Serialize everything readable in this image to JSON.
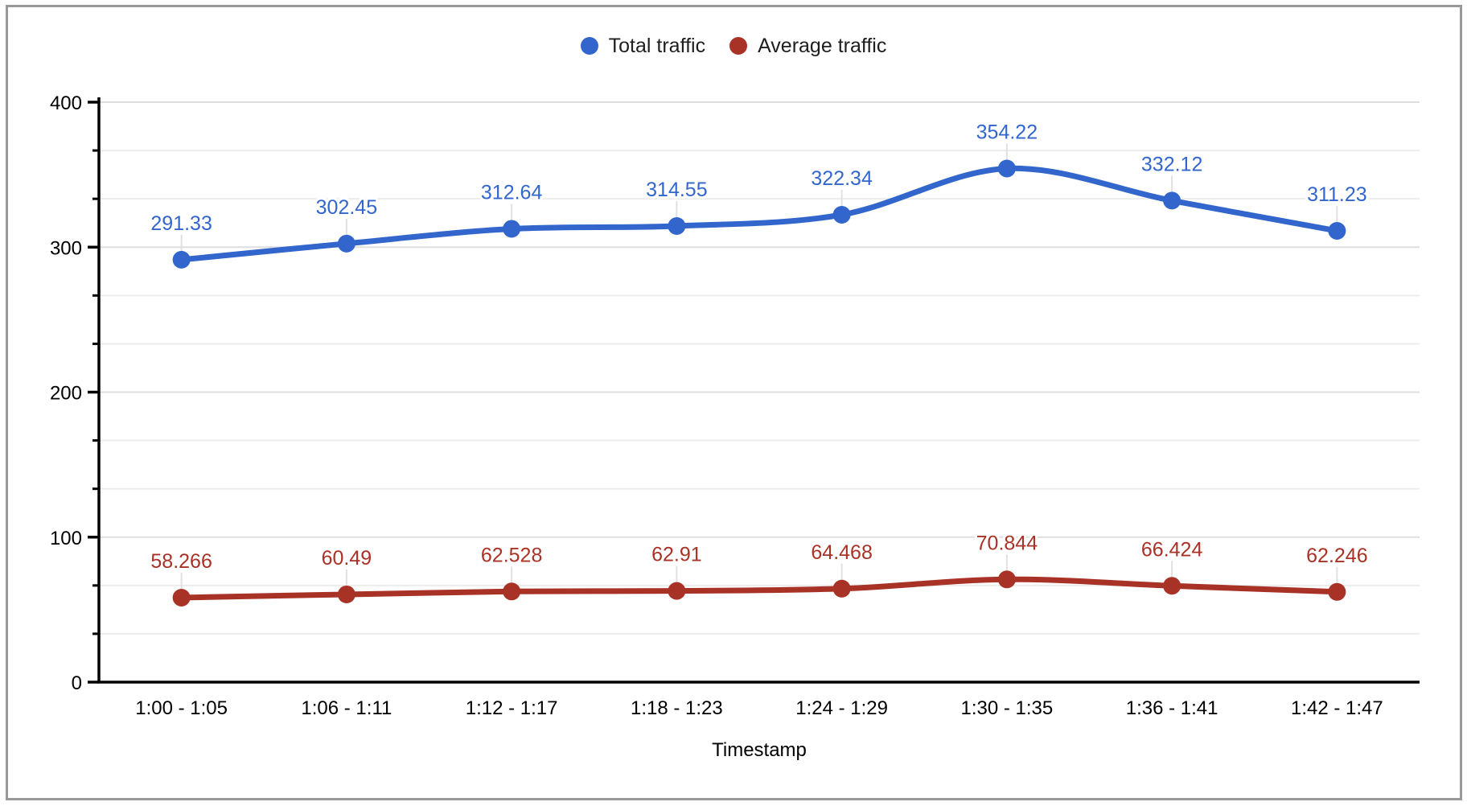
{
  "chart_data": {
    "type": "line",
    "smooth": true,
    "title": "",
    "xlabel": "Timestamp",
    "ylabel": "",
    "categories": [
      "1:00 - 1:05",
      "1:06 - 1:11",
      "1:12 - 1:17",
      "1:18 - 1:23",
      "1:24 - 1:29",
      "1:30 - 1:35",
      "1:36 - 1:41",
      "1:42 - 1:47"
    ],
    "series": [
      {
        "name": "Total traffic",
        "color": "#3366cc",
        "values": [
          291.33,
          302.45,
          312.64,
          314.55,
          322.34,
          354.22,
          332.12,
          311.23
        ],
        "labels": [
          "291.33",
          "302.45",
          "312.64",
          "314.55",
          "322.34",
          "354.22",
          "332.12",
          "311.23"
        ]
      },
      {
        "name": "Average traffic",
        "color": "#a93226",
        "values": [
          58.266,
          60.49,
          62.528,
          62.91,
          64.468,
          70.844,
          66.424,
          62.246
        ],
        "labels": [
          "58.266",
          "60.49",
          "62.528",
          "62.91",
          "64.468",
          "70.844",
          "66.424",
          "62.246"
        ]
      }
    ],
    "ylim": [
      0,
      400
    ],
    "y_major_ticks": [
      0,
      100,
      200,
      300,
      400
    ],
    "y_tick_labels": [
      "0",
      "100",
      "200",
      "300",
      "400"
    ],
    "y_minor_divisions": 3,
    "grid": true,
    "legend_position": "top-center",
    "marker": "circle",
    "data_labels_shown": true
  },
  "styles": {
    "window_border_color": "#999999",
    "background_color": "#ffffff",
    "axis_text_color": "#000000",
    "legend_text_color": "#1f1f1f",
    "axis_line_color": "#000000",
    "major_grid_color": "#dedede",
    "minor_grid_color": "#ececec",
    "callout_color": "#e1e1e1"
  }
}
